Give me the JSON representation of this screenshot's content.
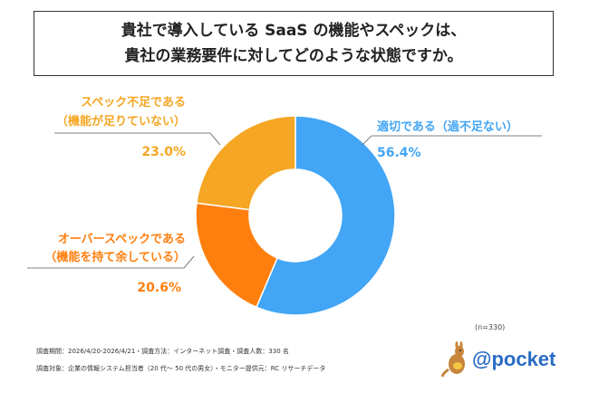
{
  "header": {
    "title_line1": "貴社で導入している SaaS の機能やスペックは、",
    "title_line2": "貴社の業務要件に対してどのような状態ですか。"
  },
  "chart_data": {
    "type": "pie",
    "donut": true,
    "sample_size": "(n=330)",
    "slices": [
      {
        "label_line1": "適切である（過不足ない）",
        "label_line2": "",
        "value": 56.4,
        "value_label": "56.4%",
        "color": "#42A5F5"
      },
      {
        "label_line1": "オーバースペックである",
        "label_line2": "（機能を持て余している）",
        "value": 20.6,
        "value_label": "20.6%",
        "color": "#FF7F0E"
      },
      {
        "label_line1": "スペック不足である",
        "label_line2": "（機能が足りていない）",
        "value": 23.0,
        "value_label": "23.0%",
        "color": "#F5A623"
      }
    ]
  },
  "footer": {
    "line1": "調査期間：2026/4/20-2026/4/21・調査方法：インターネット調査・調査人数：330 名",
    "line2": "調査対象：企業の情報システム担当者（20 代～ 50 代の男女）・モニター提供元：RC リサーチデータ"
  },
  "logo": {
    "text": "@pocket",
    "icon": "kangaroo-icon",
    "color": "#2b6cc4"
  }
}
